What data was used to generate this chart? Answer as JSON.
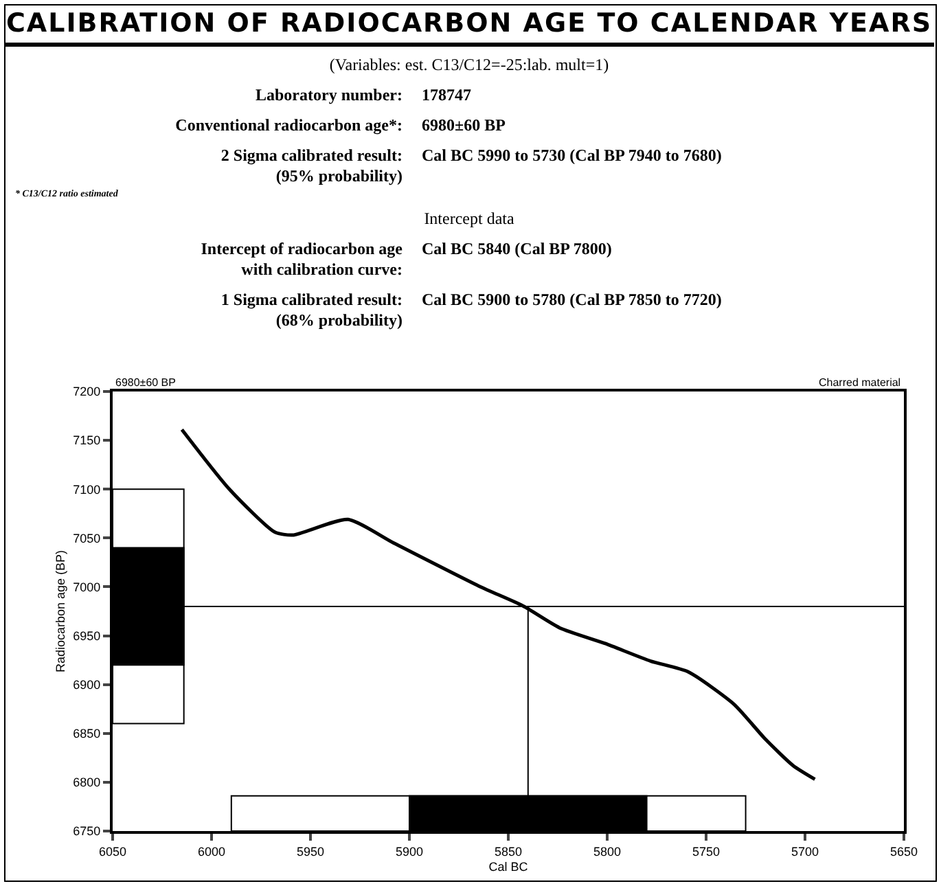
{
  "chart_data": {
    "type": "line",
    "title": "CALIBRATION OF RADIOCARBON  AGE TO CALENDAR YEARS",
    "xlabel": "Cal BC",
    "ylabel": "Radiocarbon age (BP)",
    "x": [
      6015,
      5991,
      5968,
      5959,
      5931,
      5908,
      5864,
      5843,
      5824,
      5801,
      5778,
      5759,
      5736,
      5720,
      5706,
      5695
    ],
    "series": [
      {
        "color": "#000000",
        "values": [
          7161,
          7100,
          7056,
          7053,
          7069,
          7045,
          7000,
          6981,
          6958,
          6942,
          6924,
          6913,
          6880,
          6844,
          6817,
          6803
        ]
      }
    ],
    "xlim": [
      6050,
      5650
    ],
    "xticks": [
      6050,
      6000,
      5950,
      5900,
      5850,
      5800,
      5750,
      5700,
      5650
    ],
    "ylim": [
      6750,
      7200
    ],
    "yticks": [
      6750,
      6800,
      6850,
      6900,
      6950,
      7000,
      7050,
      7100,
      7150,
      7200
    ],
    "ref_lines": [
      {
        "axis": "y",
        "value": 6980
      },
      {
        "axis": "x",
        "value": 5840
      }
    ],
    "bands": [
      {
        "axis": "y",
        "from": 6860,
        "to": 7100,
        "color": "#ffffff"
      },
      {
        "axis": "y",
        "from": 6920,
        "to": 7040,
        "color": "#000000"
      },
      {
        "axis": "x",
        "from": 5990,
        "to": 5730,
        "color": "#ffffff"
      },
      {
        "axis": "x",
        "from": 5900,
        "to": 5780,
        "color": "#000000"
      }
    ],
    "annotations": [
      "(Variables: est. C13/C12=-25:lab. mult=1)",
      "Laboratory number:",
      "178747",
      "Conventional radiocarbon age*:",
      "6980±60 BP",
      "2 Sigma calibrated result:\n(95% probability)",
      "Cal BC 5990 to 5730 (Cal BP 7940 to 7680)",
      "* C13/C12 ratio estimated",
      "Intercept data",
      "Intercept of radiocarbon age\nwith calibration curve:",
      "Cal BC 5840 (Cal BP 7800)",
      "1 Sigma calibrated result:\n(68% probability)",
      "Cal BC 5900 to 5780 (Cal BP 7850 to 7720)",
      "6980±60 BP",
      "Charred material"
    ],
    "grid": false,
    "marker": "none",
    "line_style": "solid"
  }
}
